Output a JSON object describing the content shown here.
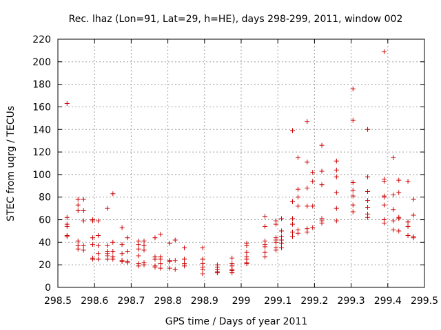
{
  "chart_data": {
    "type": "scatter",
    "title": "Rec. lhaz (Lon=91, Lat=29, h=HE), days 298-299, 2011, window 002",
    "xlabel": "GPS time / Days of year 2011",
    "ylabel": "STEC from uqrg / TECUs",
    "xlim": [
      298.5,
      299.5
    ],
    "ylim": [
      0,
      220
    ],
    "xticks": [
      298.5,
      298.6,
      298.7,
      298.8,
      298.9,
      299.0,
      299.1,
      299.2,
      299.3,
      299.4,
      299.5
    ],
    "xtick_labels": [
      "298.5",
      "298.6",
      "298.7",
      "298.8",
      "298.9",
      "299",
      "299.1",
      "299.2",
      "299.3",
      "299.4",
      "299.5"
    ],
    "yticks": [
      0,
      20,
      40,
      60,
      80,
      100,
      120,
      140,
      160,
      180,
      200,
      220
    ],
    "ytick_labels": [
      "0",
      "20",
      "40",
      "60",
      "80",
      "100",
      "120",
      "140",
      "160",
      "180",
      "200",
      "220"
    ],
    "grid": true,
    "marker": "+",
    "color": "#cc0000",
    "series": [
      {
        "points": [
          [
            298.525,
            163
          ],
          [
            298.525,
            62
          ],
          [
            298.525,
            56
          ],
          [
            298.525,
            54
          ],
          [
            298.525,
            46
          ],
          [
            298.525,
            45
          ],
          [
            298.555,
            78
          ],
          [
            298.555,
            73
          ],
          [
            298.555,
            68
          ],
          [
            298.555,
            41
          ],
          [
            298.555,
            37
          ],
          [
            298.555,
            34
          ],
          [
            298.57,
            78
          ],
          [
            298.57,
            68
          ],
          [
            298.57,
            59
          ],
          [
            298.57,
            37
          ],
          [
            298.57,
            33
          ],
          [
            298.595,
            60
          ],
          [
            298.595,
            59
          ],
          [
            298.595,
            44
          ],
          [
            298.595,
            38
          ],
          [
            298.595,
            26
          ],
          [
            298.595,
            25
          ],
          [
            298.61,
            59
          ],
          [
            298.61,
            46
          ],
          [
            298.61,
            37
          ],
          [
            298.61,
            30
          ],
          [
            298.61,
            25
          ],
          [
            298.635,
            70
          ],
          [
            298.635,
            37
          ],
          [
            298.635,
            32
          ],
          [
            298.635,
            30
          ],
          [
            298.635,
            28
          ],
          [
            298.635,
            25
          ],
          [
            298.65,
            83
          ],
          [
            298.65,
            40
          ],
          [
            298.65,
            32
          ],
          [
            298.65,
            27
          ],
          [
            298.65,
            25
          ],
          [
            298.675,
            53
          ],
          [
            298.675,
            38
          ],
          [
            298.675,
            30
          ],
          [
            298.675,
            24
          ],
          [
            298.675,
            23
          ],
          [
            298.69,
            44
          ],
          [
            298.69,
            32
          ],
          [
            298.69,
            23
          ],
          [
            298.69,
            22
          ],
          [
            298.72,
            41
          ],
          [
            298.72,
            38
          ],
          [
            298.72,
            34
          ],
          [
            298.72,
            28
          ],
          [
            298.72,
            21
          ],
          [
            298.72,
            19
          ],
          [
            298.735,
            41
          ],
          [
            298.735,
            37
          ],
          [
            298.735,
            33
          ],
          [
            298.735,
            22
          ],
          [
            298.735,
            20
          ],
          [
            298.765,
            44
          ],
          [
            298.765,
            27
          ],
          [
            298.765,
            25
          ],
          [
            298.765,
            19
          ],
          [
            298.765,
            18
          ],
          [
            298.78,
            47
          ],
          [
            298.78,
            27
          ],
          [
            298.78,
            25
          ],
          [
            298.78,
            21
          ],
          [
            298.78,
            17
          ],
          [
            298.805,
            39
          ],
          [
            298.805,
            24
          ],
          [
            298.805,
            23
          ],
          [
            298.805,
            17
          ],
          [
            298.82,
            42
          ],
          [
            298.82,
            24
          ],
          [
            298.82,
            16
          ],
          [
            298.845,
            35
          ],
          [
            298.845,
            25
          ],
          [
            298.845,
            21
          ],
          [
            298.845,
            19
          ],
          [
            298.895,
            35
          ],
          [
            298.895,
            25
          ],
          [
            298.895,
            21
          ],
          [
            298.895,
            18
          ],
          [
            298.895,
            16
          ],
          [
            298.895,
            12
          ],
          [
            298.935,
            20
          ],
          [
            298.935,
            18
          ],
          [
            298.935,
            16
          ],
          [
            298.935,
            14
          ],
          [
            298.935,
            13
          ],
          [
            298.975,
            26
          ],
          [
            298.975,
            21
          ],
          [
            298.975,
            19
          ],
          [
            298.975,
            16
          ],
          [
            298.975,
            15
          ],
          [
            298.975,
            13
          ],
          [
            299.015,
            39
          ],
          [
            299.015,
            37
          ],
          [
            299.015,
            31
          ],
          [
            299.015,
            27
          ],
          [
            299.015,
            25
          ],
          [
            299.015,
            22
          ],
          [
            299.015,
            21
          ],
          [
            299.065,
            63
          ],
          [
            299.065,
            54
          ],
          [
            299.065,
            41
          ],
          [
            299.065,
            38
          ],
          [
            299.065,
            36
          ],
          [
            299.065,
            31
          ],
          [
            299.065,
            27
          ],
          [
            299.095,
            59
          ],
          [
            299.095,
            56
          ],
          [
            299.095,
            44
          ],
          [
            299.095,
            42
          ],
          [
            299.095,
            40
          ],
          [
            299.095,
            35
          ],
          [
            299.095,
            33
          ],
          [
            299.11,
            61
          ],
          [
            299.11,
            50
          ],
          [
            299.11,
            45
          ],
          [
            299.11,
            42
          ],
          [
            299.11,
            39
          ],
          [
            299.11,
            35
          ],
          [
            299.14,
            139
          ],
          [
            299.14,
            76
          ],
          [
            299.14,
            61
          ],
          [
            299.14,
            56
          ],
          [
            299.14,
            49
          ],
          [
            299.14,
            45
          ],
          [
            299.155,
            115
          ],
          [
            299.155,
            87
          ],
          [
            299.155,
            80
          ],
          [
            299.155,
            72
          ],
          [
            299.155,
            51
          ],
          [
            299.155,
            48
          ],
          [
            299.18,
            147
          ],
          [
            299.18,
            111
          ],
          [
            299.18,
            88
          ],
          [
            299.18,
            72
          ],
          [
            299.18,
            52
          ],
          [
            299.18,
            49
          ],
          [
            299.195,
            102
          ],
          [
            299.195,
            94
          ],
          [
            299.195,
            72
          ],
          [
            299.195,
            53
          ],
          [
            299.22,
            126
          ],
          [
            299.22,
            103
          ],
          [
            299.22,
            91
          ],
          [
            299.22,
            61
          ],
          [
            299.22,
            59
          ],
          [
            299.22,
            57
          ],
          [
            299.26,
            112
          ],
          [
            299.26,
            104
          ],
          [
            299.26,
            98
          ],
          [
            299.26,
            84
          ],
          [
            299.26,
            70
          ],
          [
            299.26,
            59
          ],
          [
            299.305,
            176
          ],
          [
            299.305,
            148
          ],
          [
            299.305,
            93
          ],
          [
            299.305,
            86
          ],
          [
            299.305,
            81
          ],
          [
            299.305,
            73
          ],
          [
            299.305,
            67
          ],
          [
            299.345,
            140
          ],
          [
            299.345,
            98
          ],
          [
            299.345,
            85
          ],
          [
            299.345,
            77
          ],
          [
            299.345,
            71
          ],
          [
            299.345,
            65
          ],
          [
            299.345,
            62
          ],
          [
            299.39,
            209
          ],
          [
            299.39,
            96
          ],
          [
            299.39,
            94
          ],
          [
            299.39,
            81
          ],
          [
            299.39,
            80
          ],
          [
            299.39,
            73
          ],
          [
            299.39,
            60
          ],
          [
            299.39,
            57
          ],
          [
            299.415,
            115
          ],
          [
            299.415,
            82
          ],
          [
            299.415,
            69
          ],
          [
            299.415,
            59
          ],
          [
            299.415,
            51
          ],
          [
            299.43,
            95
          ],
          [
            299.43,
            84
          ],
          [
            299.43,
            62
          ],
          [
            299.43,
            61
          ],
          [
            299.43,
            50
          ],
          [
            299.455,
            94
          ],
          [
            299.455,
            58
          ],
          [
            299.455,
            54
          ],
          [
            299.455,
            46
          ],
          [
            299.47,
            78
          ],
          [
            299.47,
            64
          ],
          [
            299.47,
            45
          ],
          [
            299.47,
            44
          ]
        ]
      }
    ]
  }
}
